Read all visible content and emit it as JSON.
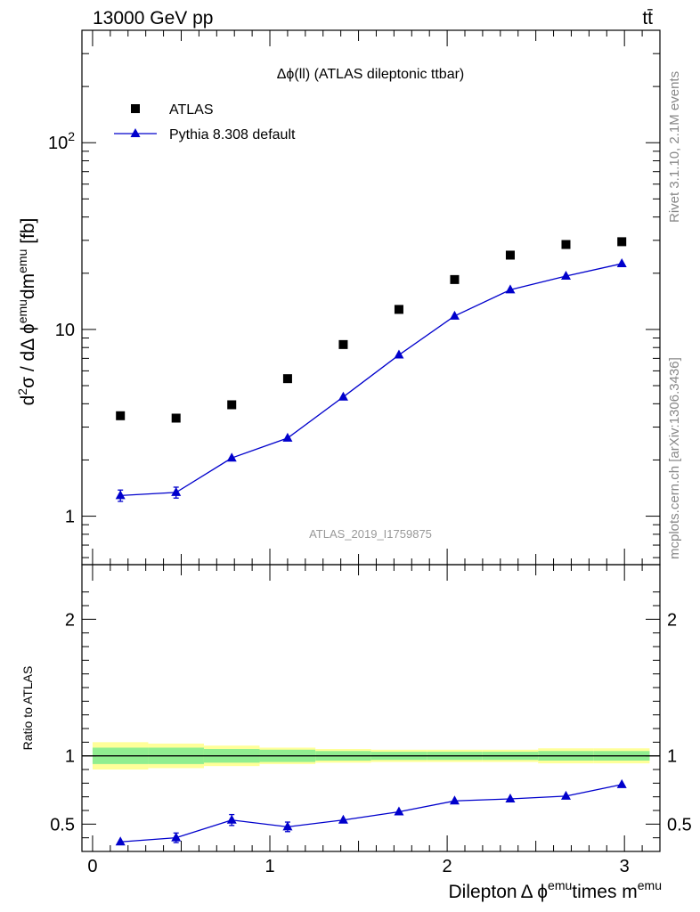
{
  "header": {
    "left": "13000 GeV pp",
    "right": "tt̄"
  },
  "side_labels": {
    "rivet": "Rivet 3.1.10,  2.1M events",
    "mcplots": "mcplots.cern.ch [arXiv:1306.3436]"
  },
  "colors": {
    "mc": "#0000cc",
    "data": "#000000",
    "band_inner": "#90ee90",
    "band_outer": "#ffff99"
  },
  "chart_data": [
    {
      "type": "scatter",
      "title": "Δϕ(ll) (ATLAS dileptonic ttbar)",
      "watermark": "ATLAS_2019_I1759875",
      "ylabel": "d²σ / dΔ ϕ^emu dm^emu [fb]",
      "yscale": "log",
      "ylim": [
        0.55,
        400
      ],
      "xlim": [
        -0.06,
        3.2
      ],
      "legend_position": "top-left",
      "y_tick_labels": [
        "1",
        "10",
        "10²"
      ],
      "x": [
        0.157,
        0.471,
        0.785,
        1.1,
        1.414,
        1.728,
        2.042,
        2.356,
        2.67,
        2.985
      ],
      "series": [
        {
          "name": "ATLAS",
          "marker": "square",
          "values": [
            3.45,
            3.35,
            3.95,
            5.45,
            8.3,
            12.8,
            18.5,
            25.0,
            28.5,
            29.5
          ]
        },
        {
          "name": "Pythia 8.308 default",
          "marker": "triangle",
          "values": [
            1.29,
            1.34,
            2.05,
            2.62,
            4.35,
            7.3,
            11.8,
            16.3,
            19.3,
            22.5
          ],
          "errors": [
            0.09,
            0.09,
            0.11,
            0.1,
            0.1,
            0.12,
            0.15,
            0.2,
            0.2,
            0.2
          ]
        }
      ]
    },
    {
      "type": "line",
      "ylabel": "Ratio to ATLAS",
      "xlabel": "Dilepton Δ ϕ^emu times m^emu",
      "ylim": [
        0.3,
        2.4
      ],
      "xlim": [
        -0.06,
        3.2
      ],
      "y_tick_labels": [
        "0.5",
        "1",
        "2"
      ],
      "x_tick_labels": [
        "0",
        "1",
        "2",
        "3"
      ],
      "x": [
        0.157,
        0.471,
        0.785,
        1.1,
        1.414,
        1.728,
        2.042,
        2.356,
        2.67,
        2.985
      ],
      "series": [
        {
          "name": "Pythia 8.308 default",
          "values": [
            0.37,
            0.4,
            0.53,
            0.48,
            0.53,
            0.59,
            0.67,
            0.685,
            0.705,
            0.79
          ],
          "errors": [
            0.02,
            0.035,
            0.04,
            0.035,
            0.03,
            0.02,
            0.015,
            0.012,
            0.012,
            0.012
          ]
        }
      ],
      "band": {
        "edges": [
          0.0,
          0.314,
          0.628,
          0.942,
          1.257,
          1.571,
          1.885,
          2.199,
          2.513,
          2.827,
          3.142
        ],
        "inner_lo": [
          0.94,
          0.94,
          0.95,
          0.955,
          0.965,
          0.97,
          0.97,
          0.97,
          0.965,
          0.965
        ],
        "inner_hi": [
          1.06,
          1.06,
          1.05,
          1.045,
          1.035,
          1.03,
          1.03,
          1.03,
          1.035,
          1.035
        ],
        "outer_lo": [
          0.9,
          0.91,
          0.925,
          0.94,
          0.95,
          0.955,
          0.955,
          0.955,
          0.945,
          0.945
        ],
        "outer_hi": [
          1.1,
          1.09,
          1.075,
          1.06,
          1.05,
          1.045,
          1.045,
          1.045,
          1.055,
          1.055
        ]
      }
    }
  ]
}
